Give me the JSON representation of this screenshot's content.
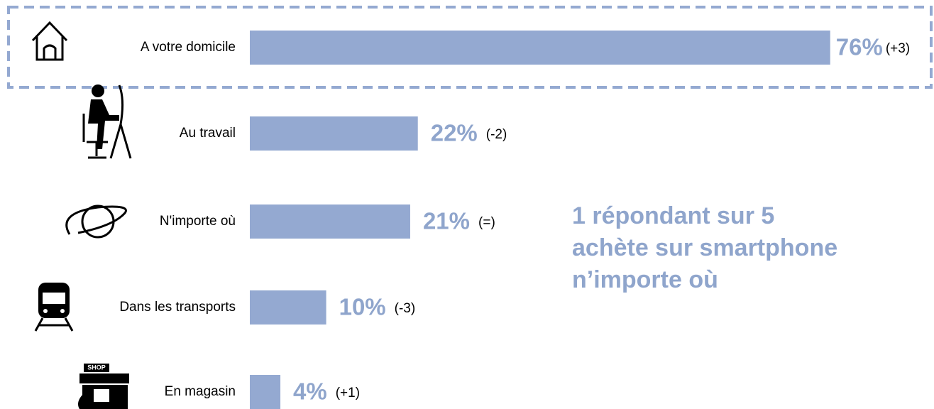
{
  "chart_data": {
    "type": "bar",
    "orientation": "horizontal",
    "categories": [
      "A votre domicile",
      "Au travail",
      "N'importe où",
      "Dans les transports",
      "En magasin"
    ],
    "values": [
      76,
      22,
      21,
      10,
      4
    ],
    "value_labels": [
      "76%",
      "22%",
      "21%",
      "10%",
      "4%"
    ],
    "changes": [
      "(+3)",
      "(-2)",
      "(=)",
      "(-3)",
      "(+1)"
    ],
    "color": "#94a9d1",
    "annotation": [
      "1 répondant sur 5",
      "achète sur smartphone",
      "n’importe où"
    ]
  }
}
